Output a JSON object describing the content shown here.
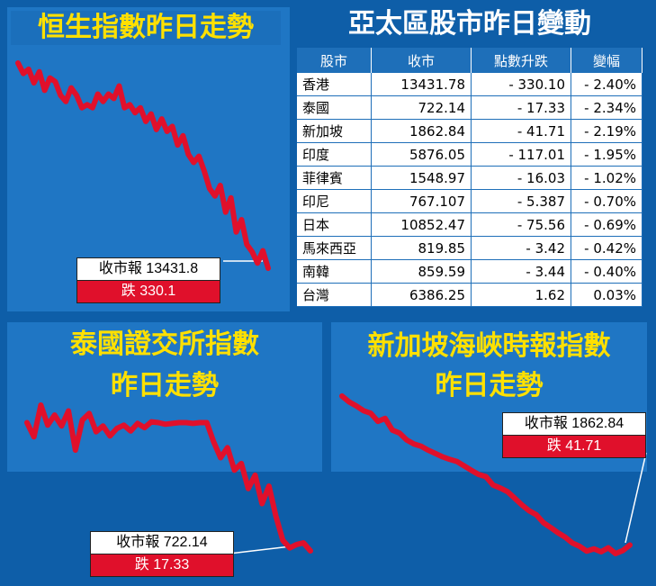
{
  "hsi": {
    "title": "恒生指數昨日走勢",
    "label_close": "收市報 13431.8",
    "label_change": "跌 330.1"
  },
  "asia": {
    "title": "亞太區股市昨日變動",
    "headers": [
      "股市",
      "收市",
      "點數升跌",
      "變幅"
    ],
    "rows": [
      [
        "香港",
        "13431.78",
        "- 330.10",
        "- 2.40%"
      ],
      [
        "泰國",
        "722.14",
        "- 17.33",
        "- 2.34%"
      ],
      [
        "新加坡",
        "1862.84",
        "- 41.71",
        "- 2.19%"
      ],
      [
        "印度",
        "5876.05",
        "- 117.01",
        "- 1.95%"
      ],
      [
        "菲律賓",
        "1548.97",
        "- 16.03",
        "- 1.02%"
      ],
      [
        "印尼",
        "767.107",
        "- 5.387",
        "- 0.70%"
      ],
      [
        "日本",
        "10852.47",
        "- 75.56",
        "- 0.69%"
      ],
      [
        "馬來西亞",
        "819.85",
        "- 3.42",
        "- 0.42%"
      ],
      [
        "南韓",
        "859.59",
        "- 3.44",
        "- 0.40%"
      ],
      [
        "台灣",
        "6386.25",
        "1.62",
        "0.03%"
      ]
    ]
  },
  "set": {
    "title_line1": "泰國證交所指數",
    "title_line2": "昨日走勢",
    "label_close": "收市報 722.14",
    "label_change": "跌 17.33"
  },
  "sti": {
    "title_line1": "新加坡海峽時報指數",
    "title_line2": "昨日走勢",
    "label_close": "收市報 1862.84",
    "label_change": "跌 41.71"
  },
  "colors": {
    "line": "#e0102b",
    "title_yellow": "#ffe000",
    "background": "#0e5ea8",
    "panel": "#1f76c4"
  },
  "chart_data": [
    {
      "type": "line",
      "title": "恒生指數昨日走勢",
      "values": [
        13762,
        13745,
        13752,
        13730,
        13748,
        13718,
        13738,
        13732,
        13710,
        13700,
        13722,
        13710,
        13690,
        13695,
        13690,
        13712,
        13700,
        13712,
        13705,
        13725,
        13690,
        13695,
        13682,
        13690,
        13668,
        13680,
        13655,
        13672,
        13652,
        13660,
        13630,
        13645,
        13615,
        13602,
        13612,
        13588,
        13560,
        13548,
        13565,
        13522,
        13545,
        13490,
        13510,
        13470,
        13458,
        13440,
        13460,
        13431.8
      ],
      "close": 13431.8,
      "change": -330.1
    },
    {
      "type": "line",
      "title": "泰國證交所指數昨日走勢",
      "values": [
        737.5,
        735.8,
        739.6,
        737.2,
        738.4,
        737.1,
        738.9,
        734.2,
        737.8,
        738.6,
        736.4,
        737.1,
        735.9,
        736.8,
        737.2,
        736.5,
        737.4,
        736.9,
        737.6,
        737.5,
        737.3,
        737.4,
        737.5,
        737.5,
        737.4,
        737.5,
        737.5,
        735.2,
        733.3,
        734.5,
        731.8,
        732.6,
        729.6,
        731.2,
        727.8,
        729.9,
        726.3,
        723.4,
        722.5,
        722.9,
        723.1,
        722.14
      ],
      "close": 722.14,
      "change": -17.33
    },
    {
      "type": "line",
      "title": "新加坡海峽時報指數昨日走勢",
      "values": [
        1903.5,
        1901.9,
        1900.8,
        1899.5,
        1898.8,
        1896.6,
        1897.4,
        1894.2,
        1893.4,
        1891.5,
        1890.4,
        1889.8,
        1888.7,
        1887.8,
        1886.9,
        1886.2,
        1885.6,
        1884.4,
        1883.2,
        1882.1,
        1881.5,
        1879.2,
        1878.4,
        1877.4,
        1875.6,
        1873.8,
        1872.2,
        1871.1,
        1868.9,
        1867.6,
        1866.2,
        1865.0,
        1863.4,
        1862.5,
        1861.2,
        1861.8,
        1861.0,
        1862.1,
        1860.5,
        1861.3,
        1862.84
      ],
      "close": 1862.84,
      "change": -41.71
    }
  ]
}
